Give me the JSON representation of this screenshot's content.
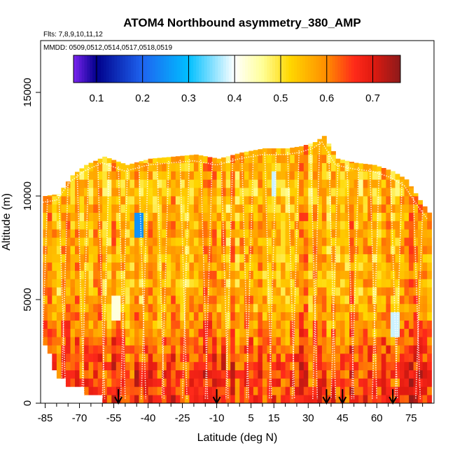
{
  "chart_data": {
    "type": "heatmap",
    "title": "ATOM4 Northbound asymmetry_380_AMP",
    "subtitle_flights": "Flts: 7,8,9,10,11,12",
    "subtitle_dates": "MMDD: 0509,0512,0514,0517,0518,0519",
    "xlabel": "Latitude (deg N)",
    "ylabel": "Altitude (m)",
    "xlim": [
      -87,
      85
    ],
    "ylim": [
      0,
      17500
    ],
    "x_ticks": [
      -85,
      -70,
      -55,
      -40,
      -25,
      -10,
      5,
      15,
      30,
      45,
      60,
      75
    ],
    "x_tick_labels": [
      "-85",
      "-70",
      "-55",
      "-40",
      "-25",
      "-10",
      "5",
      "15",
      "30",
      "45",
      "60",
      "75"
    ],
    "x_minor_ticks": [
      -80,
      -75,
      -65,
      -60,
      -50,
      -45,
      -35,
      -30,
      -20,
      -15,
      -5,
      0,
      10,
      20,
      25,
      35,
      40,
      50,
      55,
      65,
      70,
      80
    ],
    "y_ticks": [
      0,
      5000,
      10000,
      15000
    ],
    "y_tick_labels": [
      "0",
      "5000",
      "10000",
      "15000"
    ],
    "colorbar": {
      "range": [
        0.05,
        0.76
      ],
      "ticks": [
        0.1,
        0.2,
        0.3,
        0.4,
        0.5,
        0.6,
        0.7
      ],
      "tick_labels": [
        "0.1",
        "0.2",
        "0.3",
        "0.4",
        "0.5",
        "0.6",
        "0.7"
      ],
      "stops": [
        [
          0.05,
          "#7b24f0"
        ],
        [
          0.1,
          "#00008b"
        ],
        [
          0.2,
          "#1e64f0"
        ],
        [
          0.3,
          "#00bfff"
        ],
        [
          0.4,
          "#ffffff"
        ],
        [
          0.46,
          "#ffff99"
        ],
        [
          0.52,
          "#ffd700"
        ],
        [
          0.6,
          "#ff8c00"
        ],
        [
          0.66,
          "#ff2a1a"
        ],
        [
          0.7,
          "#e01a10"
        ],
        [
          0.76,
          "#8b1a1a"
        ]
      ]
    },
    "profile_top_altitude_m": [
      [
        -86,
        10000
      ],
      [
        -80,
        10100
      ],
      [
        -74,
        11000
      ],
      [
        -68,
        11500
      ],
      [
        -60,
        11900
      ],
      [
        -50,
        11500
      ],
      [
        -40,
        11800
      ],
      [
        -30,
        11900
      ],
      [
        -20,
        12000
      ],
      [
        -10,
        11800
      ],
      [
        0,
        12100
      ],
      [
        10,
        12300
      ],
      [
        20,
        12300
      ],
      [
        26,
        12400
      ],
      [
        32,
        12600
      ],
      [
        36,
        12900
      ],
      [
        42,
        11800
      ],
      [
        50,
        11600
      ],
      [
        58,
        11500
      ],
      [
        66,
        11200
      ],
      [
        72,
        10800
      ],
      [
        78,
        9800
      ],
      [
        82,
        9200
      ]
    ],
    "profile_bottom_altitude_m": [
      [
        -86,
        3000
      ],
      [
        -80,
        1400
      ],
      [
        -70,
        800
      ],
      [
        -60,
        300
      ],
      [
        -50,
        0
      ],
      [
        82,
        0
      ]
    ],
    "field_mean_by_altitude": [
      {
        "altitude_m": 500,
        "value": 0.66
      },
      {
        "altitude_m": 2000,
        "value": 0.64
      },
      {
        "altitude_m": 4000,
        "value": 0.58
      },
      {
        "altitude_m": 6000,
        "value": 0.56
      },
      {
        "altitude_m": 8000,
        "value": 0.57
      },
      {
        "altitude_m": 10000,
        "value": 0.55
      },
      {
        "altitude_m": 11500,
        "value": 0.56
      }
    ],
    "low_value_patches": [
      {
        "lat": -45,
        "altitude_m": 8500,
        "value": 0.25
      },
      {
        "lat": -55,
        "altitude_m": 4300,
        "value": 0.42
      },
      {
        "lat": 14,
        "altitude_m": 10500,
        "value": 0.38
      },
      {
        "lat": 67,
        "altitude_m": 3500,
        "value": 0.38
      }
    ],
    "arrow_latitudes": [
      -53,
      -10,
      38,
      45,
      67
    ]
  }
}
